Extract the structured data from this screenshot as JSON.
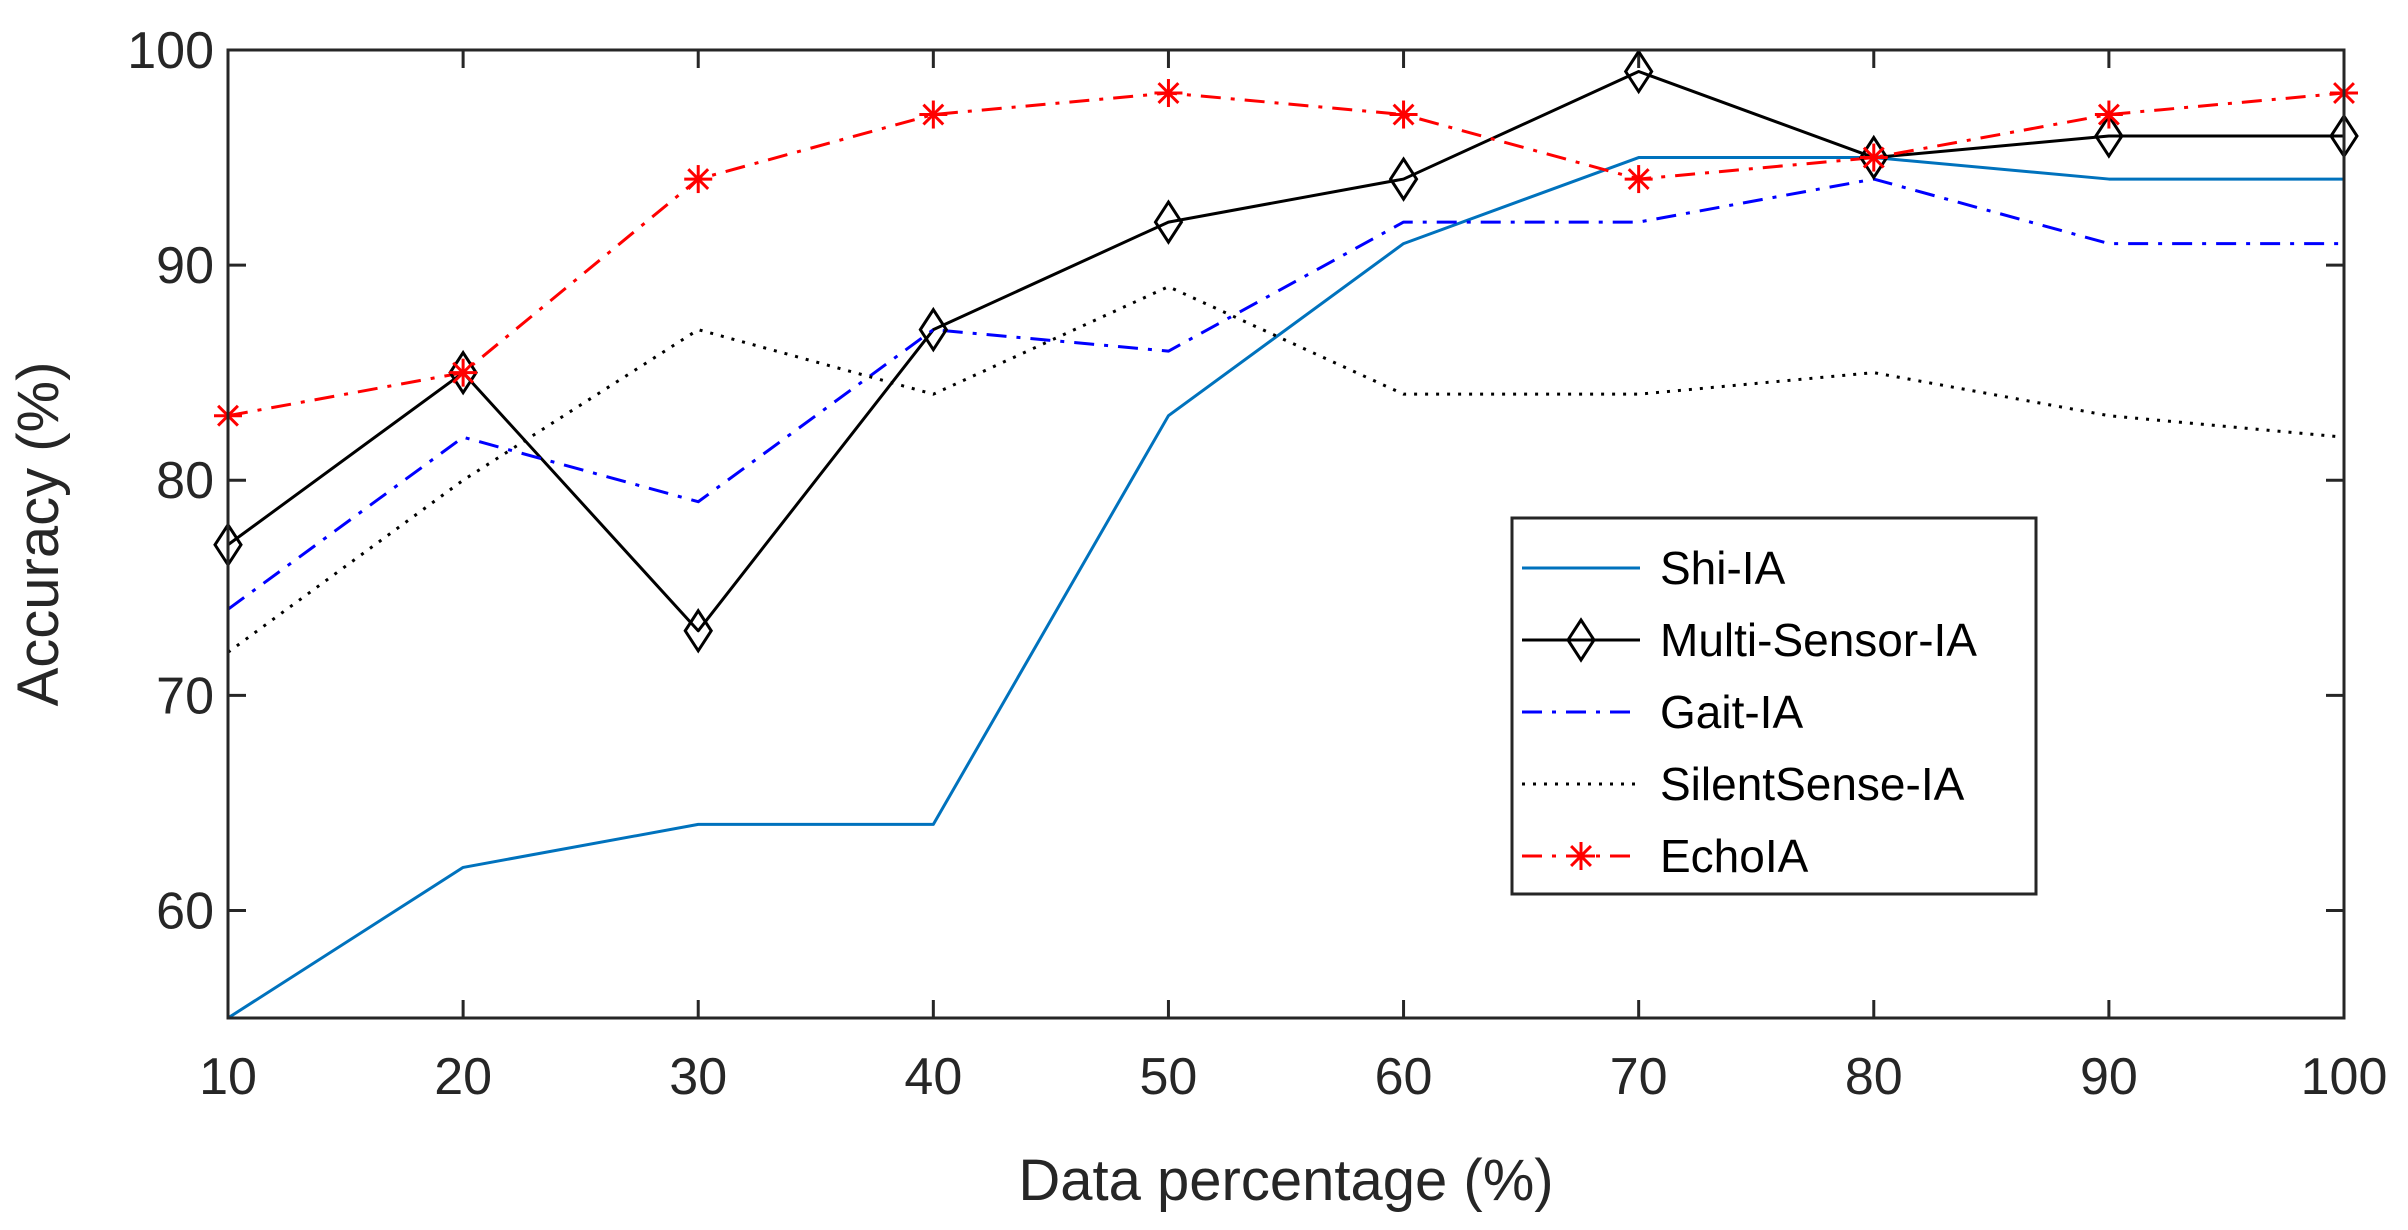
{
  "chart_data": {
    "type": "line",
    "title": "",
    "xlabel": "Data percentage (%)",
    "ylabel": "Accuracy (%)",
    "x": [
      10,
      20,
      30,
      40,
      50,
      60,
      70,
      80,
      90,
      100
    ],
    "xlim": [
      10,
      100
    ],
    "ylim": [
      55,
      100
    ],
    "xticks": [
      "10",
      "20",
      "30",
      "40",
      "50",
      "60",
      "70",
      "80",
      "90",
      "100"
    ],
    "yticks": [
      "60",
      "70",
      "80",
      "90",
      "100"
    ],
    "grid": false,
    "legend_position": "center-right",
    "series": [
      {
        "name": "Shi-IA",
        "color": "#0072BD",
        "style": "solid",
        "marker": "none",
        "values": [
          55,
          62,
          64,
          64,
          83,
          91,
          95,
          95,
          94,
          94
        ]
      },
      {
        "name": "Multi-Sensor-IA",
        "color": "#000000",
        "style": "solid",
        "marker": "diamond",
        "values": [
          77,
          85,
          73,
          87,
          92,
          94,
          99,
          95,
          96,
          96
        ]
      },
      {
        "name": "Gait-IA",
        "color": "#0000FF",
        "style": "dashdot",
        "marker": "none",
        "values": [
          74,
          82,
          79,
          87,
          86,
          92,
          92,
          94,
          91,
          91
        ]
      },
      {
        "name": "SilentSense-IA",
        "color": "#000000",
        "style": "dotted",
        "marker": "none",
        "values": [
          72,
          80,
          87,
          84,
          89,
          84,
          84,
          85,
          83,
          82
        ]
      },
      {
        "name": "EchoIA",
        "color": "#FF0000",
        "style": "dashdot",
        "marker": "asterisk",
        "values": [
          83,
          85,
          94,
          97,
          98,
          97,
          94,
          95,
          97,
          98
        ]
      }
    ]
  }
}
